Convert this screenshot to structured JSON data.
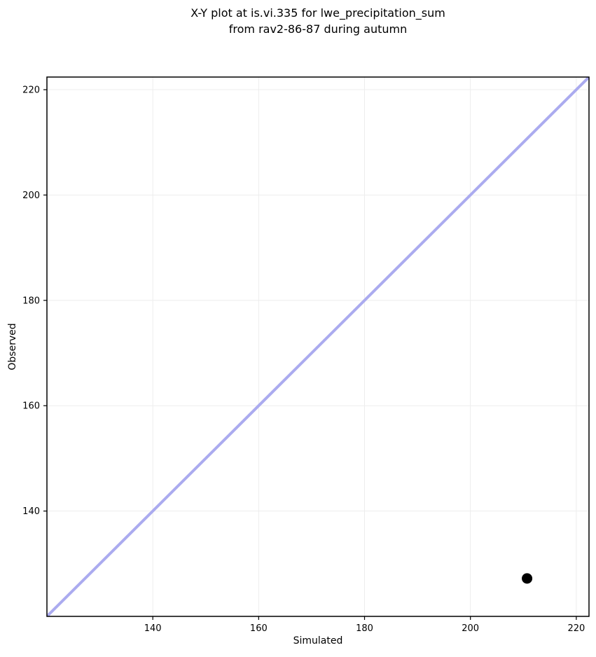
{
  "chart_data": {
    "type": "scatter",
    "title": "X-Y plot at is.vi.335 for lwe_precipitation_sum from rav2-86-87 during autumn",
    "title_lines": [
      "X-Y plot at is.vi.335 for lwe_precipitation_sum",
      "from rav2-86-87 during autumn"
    ],
    "xlabel": "Simulated",
    "ylabel": "Observed",
    "xlim": [
      120,
      222.4
    ],
    "ylim": [
      120,
      222.4
    ],
    "xticks": [
      140,
      160,
      180,
      200,
      220
    ],
    "yticks": [
      140,
      160,
      180,
      200,
      220
    ],
    "grid": true,
    "legend": "none",
    "identity_line": {
      "x1": 120,
      "y1": 120,
      "x2": 222.4,
      "y2": 222.4,
      "color": "#ababef",
      "width": 4
    },
    "series": [
      {
        "name": "observed-vs-simulated",
        "marker": "circle",
        "color": "#000000",
        "marker_radius": 7.5,
        "points": [
          {
            "x": 210.7,
            "y": 127.2
          }
        ]
      }
    ],
    "colors": {
      "background": "#ffffff",
      "spine": "#000000",
      "grid": "#ededed",
      "tick": "#000000",
      "text": "#000000"
    }
  }
}
